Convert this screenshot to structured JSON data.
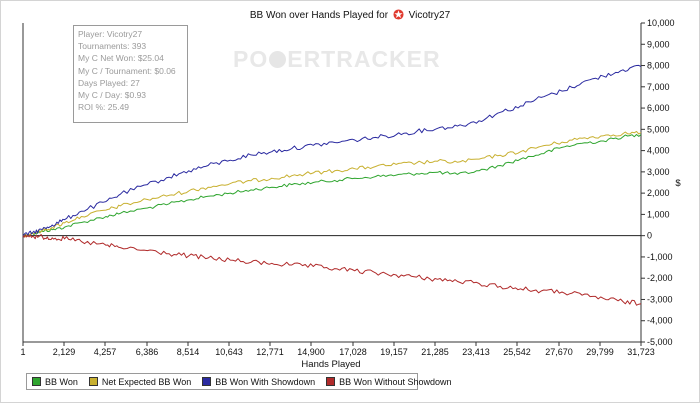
{
  "chart_data": {
    "type": "line",
    "title_prefix": "BB Won over Hands Played for",
    "player": "Vicotry27",
    "xlabel": "Hands Played",
    "ylabel": "$",
    "xlim": [
      1,
      31723
    ],
    "ylim": [
      -5000,
      10000
    ],
    "x_ticks": [
      "1",
      "2,129",
      "4,257",
      "6,386",
      "8,514",
      "10,643",
      "12,771",
      "14,900",
      "17,028",
      "19,157",
      "21,285",
      "23,413",
      "25,542",
      "27,670",
      "29,799",
      "31,723"
    ],
    "y_ticks": [
      "-5,000",
      "-4,000",
      "-3,000",
      "-2,000",
      "-1,000",
      "0",
      "1,000",
      "2,000",
      "3,000",
      "4,000",
      "5,000",
      "6,000",
      "7,000",
      "8,000",
      "9,000",
      "10,000"
    ],
    "grid": false,
    "legend_position": "bottom-left",
    "series": [
      {
        "name": "BB Won",
        "color": "#2fa52f",
        "x": [
          1,
          500,
          1000,
          1500,
          2129,
          3000,
          4257,
          5000,
          6386,
          7500,
          8514,
          9500,
          10643,
          11700,
          12771,
          13800,
          14900,
          16000,
          17028,
          18100,
          19157,
          20200,
          21285,
          22300,
          23413,
          24500,
          25542,
          26600,
          27670,
          28700,
          29799,
          30800,
          31723
        ],
        "y": [
          0,
          100,
          200,
          280,
          400,
          620,
          900,
          1050,
          1300,
          1500,
          1680,
          1850,
          2000,
          2150,
          2280,
          2400,
          2500,
          2600,
          2700,
          2780,
          2850,
          2920,
          2980,
          2880,
          3050,
          3300,
          3600,
          3850,
          4150,
          4350,
          4450,
          4650,
          4750
        ]
      },
      {
        "name": "Net Expected BB Won",
        "color": "#c8b030",
        "x": [
          1,
          500,
          1000,
          1500,
          2129,
          3000,
          4257,
          5000,
          6386,
          7500,
          8514,
          9500,
          10643,
          11700,
          12771,
          13800,
          14900,
          16000,
          17028,
          18100,
          19157,
          20200,
          21285,
          22300,
          23413,
          24500,
          25542,
          26600,
          27670,
          28700,
          29799,
          30800,
          31723
        ],
        "y": [
          0,
          120,
          250,
          380,
          600,
          900,
          1200,
          1400,
          1700,
          1900,
          2100,
          2280,
          2450,
          2580,
          2700,
          2820,
          2950,
          3050,
          3150,
          3250,
          3350,
          3420,
          3500,
          3450,
          3600,
          3780,
          3950,
          4200,
          4400,
          4580,
          4700,
          4800,
          4850
        ]
      },
      {
        "name": "BB Won With Showdown",
        "color": "#2a2aa0",
        "x": [
          1,
          500,
          1000,
          1500,
          2129,
          3000,
          4257,
          5000,
          6386,
          7500,
          8514,
          9500,
          10643,
          11700,
          12771,
          13800,
          14900,
          16000,
          17028,
          18100,
          19157,
          20200,
          21285,
          22300,
          23413,
          24500,
          25542,
          26600,
          27670,
          28700,
          29799,
          30800,
          31723
        ],
        "y": [
          0,
          150,
          300,
          500,
          750,
          1150,
          1600,
          1950,
          2400,
          2750,
          3050,
          3300,
          3550,
          3800,
          3950,
          4100,
          4250,
          4380,
          4500,
          4620,
          4750,
          4900,
          5050,
          5150,
          5400,
          5800,
          6100,
          6500,
          6800,
          7200,
          7500,
          7800,
          7950
        ]
      },
      {
        "name": "BB Won Without Showdown",
        "color": "#b02a2a",
        "x": [
          1,
          500,
          1000,
          1500,
          2129,
          3000,
          4257,
          5000,
          6386,
          7500,
          8514,
          9500,
          10643,
          11700,
          12771,
          13800,
          14900,
          16000,
          17028,
          18100,
          19157,
          20200,
          21285,
          22300,
          23413,
          24500,
          25542,
          26600,
          27670,
          28700,
          29799,
          30800,
          31723
        ],
        "y": [
          0,
          -30,
          -60,
          -100,
          -150,
          -280,
          -450,
          -560,
          -700,
          -850,
          -950,
          -1050,
          -1150,
          -1250,
          -1300,
          -1380,
          -1450,
          -1550,
          -1650,
          -1750,
          -1850,
          -1950,
          -2050,
          -2150,
          -2250,
          -2380,
          -2500,
          -2600,
          -2650,
          -2800,
          -2950,
          -3100,
          -3200
        ]
      }
    ]
  },
  "stats_box": [
    "Player: Vicotry27",
    "Tournaments: 393",
    "My C Net Won: $25.04",
    "My C / Tournament: $0.06",
    "Days Played: 27",
    "My C / Day: $0.93",
    "ROI %: 25.49"
  ],
  "watermark": {
    "left": "PO",
    "right": "ERTRACKER"
  },
  "icons": {
    "title_icon": "pokerstars-logo-icon",
    "watermark_icon": "poker-chip-icon"
  }
}
